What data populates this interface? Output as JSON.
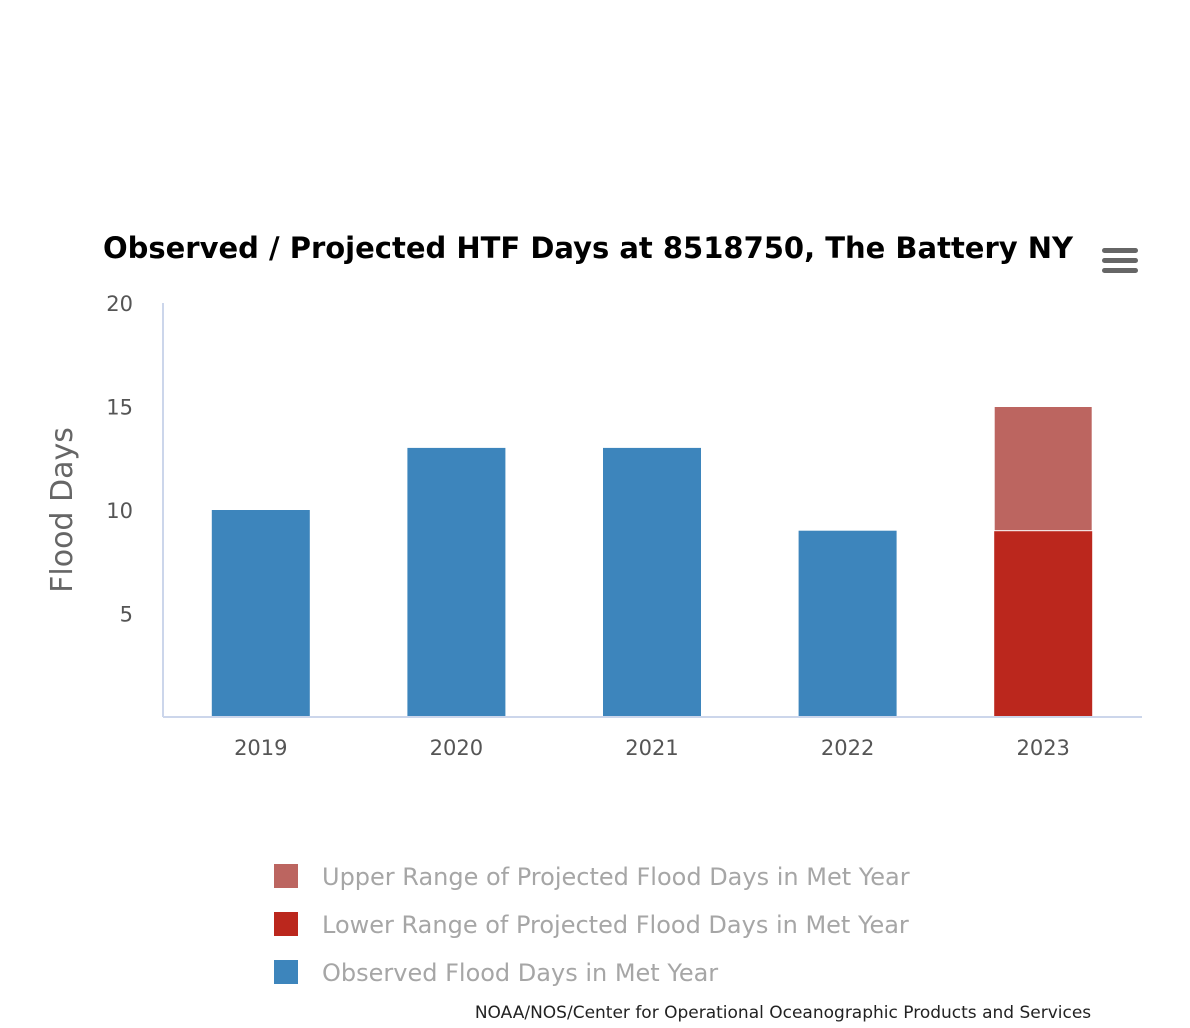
{
  "chart_data": {
    "type": "bar",
    "title": "Observed / Projected HTF Days at 8518750, The Battery NY",
    "xlabel": "",
    "ylabel": "Flood Days",
    "categories": [
      "2019",
      "2020",
      "2021",
      "2022",
      "2023"
    ],
    "ylim": [
      0,
      20
    ],
    "yticks": [
      5,
      10,
      15,
      20
    ],
    "stacked": true,
    "series": [
      {
        "name": "Observed Flood Days in Met Year",
        "color": "#3d85bc",
        "values": [
          10,
          13,
          13,
          9,
          null
        ]
      },
      {
        "name": "Lower Range of Projected Flood Days in Met Year",
        "color": "#bb271d",
        "values": [
          null,
          null,
          null,
          null,
          9
        ]
      },
      {
        "name": "Upper Range of Projected Flood Days in Met Year",
        "color": "#bc6560",
        "values": [
          null,
          null,
          null,
          null,
          6
        ]
      }
    ],
    "legend": {
      "placement": "bottom",
      "order": [
        "Upper Range of Projected Flood Days in Met Year",
        "Lower Range of Projected Flood Days in Met Year",
        "Observed Flood Days in Met Year"
      ]
    },
    "grid": false
  },
  "credits": "NOAA/NOS/Center for Operational Oceanographic Products and Services",
  "menu_icon": "hamburger-menu-icon",
  "colors": {
    "axis_line": "#ccd6eb",
    "menu_icon": "#666666"
  }
}
